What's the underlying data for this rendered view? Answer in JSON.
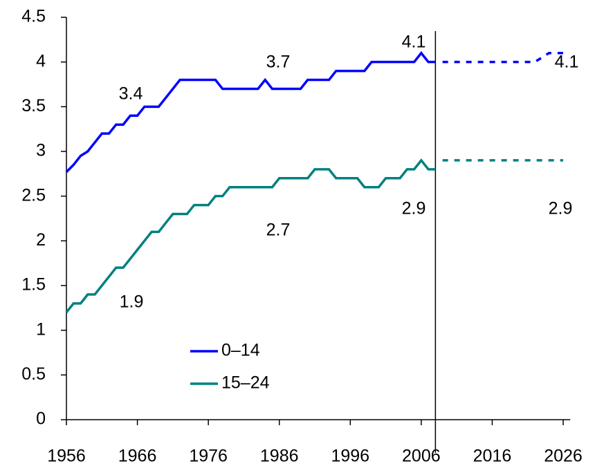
{
  "chart_data": {
    "type": "line",
    "x": [
      1956,
      1957,
      1958,
      1959,
      1960,
      1961,
      1962,
      1963,
      1964,
      1965,
      1966,
      1967,
      1968,
      1969,
      1970,
      1971,
      1972,
      1973,
      1974,
      1975,
      1976,
      1977,
      1978,
      1979,
      1980,
      1981,
      1982,
      1983,
      1984,
      1985,
      1986,
      1987,
      1988,
      1989,
      1990,
      1991,
      1992,
      1993,
      1994,
      1995,
      1996,
      1997,
      1998,
      1999,
      2000,
      2001,
      2002,
      2003,
      2004,
      2005,
      2006,
      2007,
      2008,
      2009,
      2010,
      2011,
      2012,
      2013,
      2014,
      2015,
      2016,
      2017,
      2018,
      2019,
      2020,
      2021,
      2022,
      2023,
      2024,
      2025,
      2026
    ],
    "series": [
      {
        "name": "0–14",
        "color": "#0000ff",
        "values": [
          2.77,
          2.85,
          2.95,
          3.0,
          3.1,
          3.2,
          3.2,
          3.3,
          3.3,
          3.4,
          3.4,
          3.5,
          3.5,
          3.5,
          3.6,
          3.7,
          3.8,
          3.8,
          3.8,
          3.8,
          3.8,
          3.8,
          3.7,
          3.7,
          3.7,
          3.7,
          3.7,
          3.7,
          3.8,
          3.7,
          3.7,
          3.7,
          3.7,
          3.7,
          3.8,
          3.8,
          3.8,
          3.8,
          3.9,
          3.9,
          3.9,
          3.9,
          3.9,
          4.0,
          4.0,
          4.0,
          4.0,
          4.0,
          4.0,
          4.0,
          4.1,
          4.0,
          4.0,
          4.0,
          4.0,
          4.0,
          4.0,
          4.0,
          4.0,
          4.0,
          4.0,
          4.0,
          4.0,
          4.0,
          4.0,
          4.0,
          4.0,
          4.05,
          4.1,
          4.1,
          4.1
        ]
      },
      {
        "name": "15–24",
        "color": "#008080",
        "values": [
          1.2,
          1.3,
          1.3,
          1.4,
          1.4,
          1.5,
          1.6,
          1.7,
          1.7,
          1.8,
          1.9,
          2.0,
          2.1,
          2.1,
          2.2,
          2.3,
          2.3,
          2.3,
          2.4,
          2.4,
          2.4,
          2.5,
          2.5,
          2.6,
          2.6,
          2.6,
          2.6,
          2.6,
          2.6,
          2.6,
          2.7,
          2.7,
          2.7,
          2.7,
          2.7,
          2.8,
          2.8,
          2.8,
          2.7,
          2.7,
          2.7,
          2.7,
          2.6,
          2.6,
          2.6,
          2.7,
          2.7,
          2.7,
          2.8,
          2.8,
          2.9,
          2.8,
          2.8,
          2.9,
          2.9,
          2.9,
          2.9,
          2.9,
          2.9,
          2.9,
          2.9,
          2.9,
          2.9,
          2.9,
          2.9,
          2.9,
          2.9,
          2.9,
          2.9,
          2.9,
          2.9
        ]
      }
    ],
    "projection_from": 2009,
    "divider_x": 2008,
    "annotations": [
      "3.4",
      "3.7",
      "4.1",
      "4.1",
      "1.9",
      "2.7",
      "2.9",
      "2.9"
    ],
    "xlim": [
      1956,
      2027
    ],
    "xticks": [
      1956,
      1966,
      1976,
      1986,
      1996,
      2006,
      2016,
      2026
    ],
    "ylim": [
      0,
      4.5
    ],
    "yticks": [
      0,
      0.5,
      1,
      1.5,
      2,
      2.5,
      3,
      3.5,
      4,
      4.5
    ],
    "legend": "bottom-center"
  }
}
